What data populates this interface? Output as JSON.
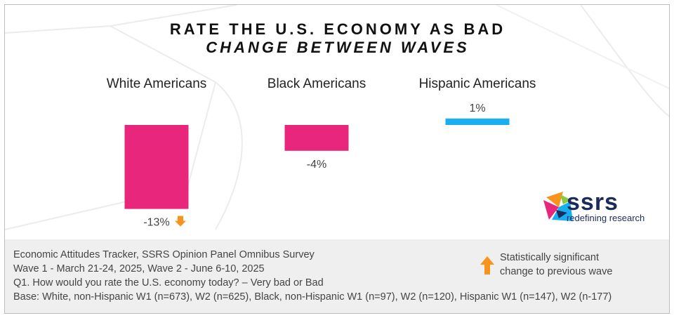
{
  "title": "RATE THE U.S. ECONOMY AS BAD",
  "subtitle": "CHANGE BETWEEN WAVES",
  "chart_data": {
    "type": "bar",
    "categories": [
      "White Americans",
      "Black Americans",
      "Hispanic Americans"
    ],
    "values": [
      -13,
      -4,
      1
    ],
    "value_labels": [
      "-13%",
      "-4%",
      "1%"
    ],
    "significant": [
      true,
      false,
      false
    ],
    "colors": {
      "negative": "#e8267c",
      "positive": "#19aef0",
      "significance_arrow": "#f7941d"
    },
    "grid": false,
    "legend_position": "bottom-right"
  },
  "logo": {
    "word": "ssrs",
    "tagline": "redefining research"
  },
  "legend": {
    "line1": "Statistically significant",
    "line2": "change to previous wave"
  },
  "footer": {
    "line1": "Economic Attitudes Tracker, SSRS Opinion Panel Omnibus Survey",
    "line2": "Wave 1 - March 21-24, 2025, Wave 2 - June 6-10, 2025",
    "line3": "Q1. How would you rate the U.S. economy today? – Very bad or Bad",
    "line4": "Base: White, non-Hispanic W1 (n=673), W2 (n=625), Black, non-Hispanic W1 (n=97), W2 (n=120), Hispanic W1 (n=147), W2 (n-177)"
  }
}
